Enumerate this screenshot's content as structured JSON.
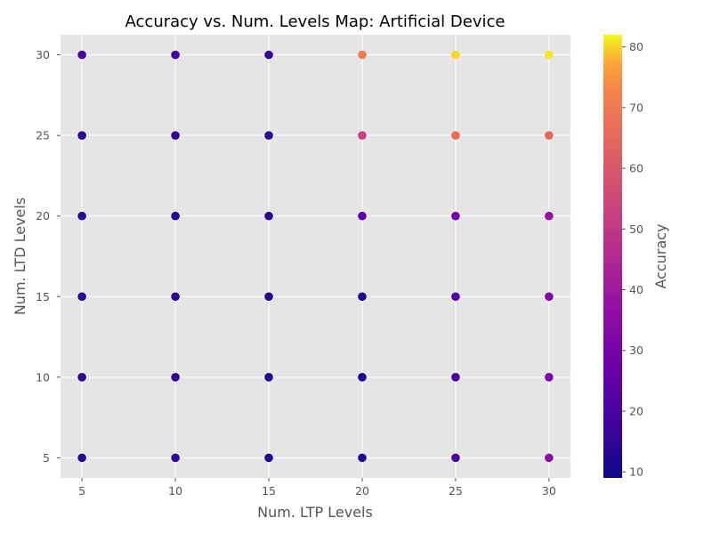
{
  "chart_data": {
    "type": "scatter",
    "title": "Accuracy vs. Num. Levels Map: Artificial Device",
    "xlabel": "Num. LTP Levels",
    "ylabel": "Num. LTD Levels",
    "colorbar_label": "Accuracy",
    "xlim": [
      3.85,
      31.15
    ],
    "ylim": [
      3.75,
      31.25
    ],
    "xticks": [
      5,
      10,
      15,
      20,
      25,
      30
    ],
    "yticks": [
      5,
      10,
      15,
      20,
      25,
      30
    ],
    "colorbar_ticks": [
      10,
      20,
      30,
      40,
      50,
      60,
      70,
      80
    ],
    "colorbar_range": [
      9.0,
      82.0
    ],
    "colormap": "plasma",
    "background": "#e5e5e5",
    "grid": true,
    "points": [
      {
        "x": 5,
        "y": 5,
        "accuracy": 14
      },
      {
        "x": 5,
        "y": 10,
        "accuracy": 15
      },
      {
        "x": 5,
        "y": 15,
        "accuracy": 14
      },
      {
        "x": 5,
        "y": 20,
        "accuracy": 14
      },
      {
        "x": 5,
        "y": 25,
        "accuracy": 14
      },
      {
        "x": 5,
        "y": 30,
        "accuracy": 19
      },
      {
        "x": 10,
        "y": 5,
        "accuracy": 15
      },
      {
        "x": 10,
        "y": 10,
        "accuracy": 15
      },
      {
        "x": 10,
        "y": 15,
        "accuracy": 14
      },
      {
        "x": 10,
        "y": 20,
        "accuracy": 13
      },
      {
        "x": 10,
        "y": 25,
        "accuracy": 15
      },
      {
        "x": 10,
        "y": 30,
        "accuracy": 17
      },
      {
        "x": 15,
        "y": 5,
        "accuracy": 13
      },
      {
        "x": 15,
        "y": 10,
        "accuracy": 13
      },
      {
        "x": 15,
        "y": 15,
        "accuracy": 13
      },
      {
        "x": 15,
        "y": 20,
        "accuracy": 14
      },
      {
        "x": 15,
        "y": 25,
        "accuracy": 14
      },
      {
        "x": 15,
        "y": 30,
        "accuracy": 16
      },
      {
        "x": 20,
        "y": 5,
        "accuracy": 12
      },
      {
        "x": 20,
        "y": 10,
        "accuracy": 11
      },
      {
        "x": 20,
        "y": 15,
        "accuracy": 12
      },
      {
        "x": 20,
        "y": 20,
        "accuracy": 25
      },
      {
        "x": 20,
        "y": 25,
        "accuracy": 53
      },
      {
        "x": 20,
        "y": 30,
        "accuracy": 71
      },
      {
        "x": 25,
        "y": 5,
        "accuracy": 20
      },
      {
        "x": 25,
        "y": 10,
        "accuracy": 20
      },
      {
        "x": 25,
        "y": 15,
        "accuracy": 22
      },
      {
        "x": 25,
        "y": 20,
        "accuracy": 29
      },
      {
        "x": 25,
        "y": 25,
        "accuracy": 67
      },
      {
        "x": 25,
        "y": 30,
        "accuracy": 80
      },
      {
        "x": 30,
        "y": 5,
        "accuracy": 35
      },
      {
        "x": 30,
        "y": 10,
        "accuracy": 32
      },
      {
        "x": 30,
        "y": 15,
        "accuracy": 33
      },
      {
        "x": 30,
        "y": 20,
        "accuracy": 38
      },
      {
        "x": 30,
        "y": 25,
        "accuracy": 65
      },
      {
        "x": 30,
        "y": 30,
        "accuracy": 81
      }
    ]
  }
}
